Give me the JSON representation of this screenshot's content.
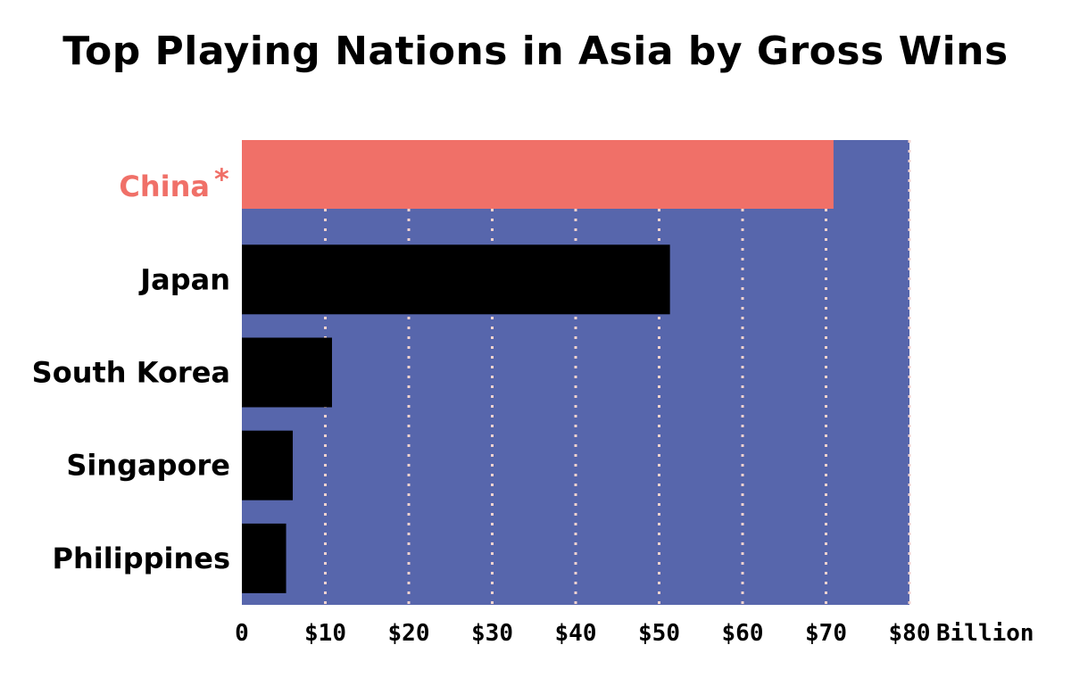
{
  "chart_data": {
    "type": "bar",
    "orientation": "horizontal",
    "title": "Top Playing Nations in Asia by Gross Wins",
    "categories": [
      "China",
      "Japan",
      "South Korea",
      "Singapore",
      "Philippines"
    ],
    "category_markers": [
      "*",
      "",
      "",
      "",
      ""
    ],
    "values": [
      70.9,
      51.3,
      10.8,
      6.1,
      5.3
    ],
    "xlim": [
      0,
      80
    ],
    "x_ticks": [
      0,
      10,
      20,
      30,
      40,
      50,
      60,
      70,
      80
    ],
    "x_tick_labels": [
      "0",
      "$10",
      "$20",
      "$30",
      "$40",
      "$50",
      "$60",
      "$70",
      "$80"
    ],
    "x_unit_label": "Billion",
    "grid": "vertical dotted",
    "colors": {
      "background": "#5766ac",
      "highlight_bar": "#f07068",
      "bar": "#000000",
      "grid": "#f3d3cf",
      "highlight_label": "#f07068",
      "label": "#000000"
    },
    "highlight_index": 0
  }
}
